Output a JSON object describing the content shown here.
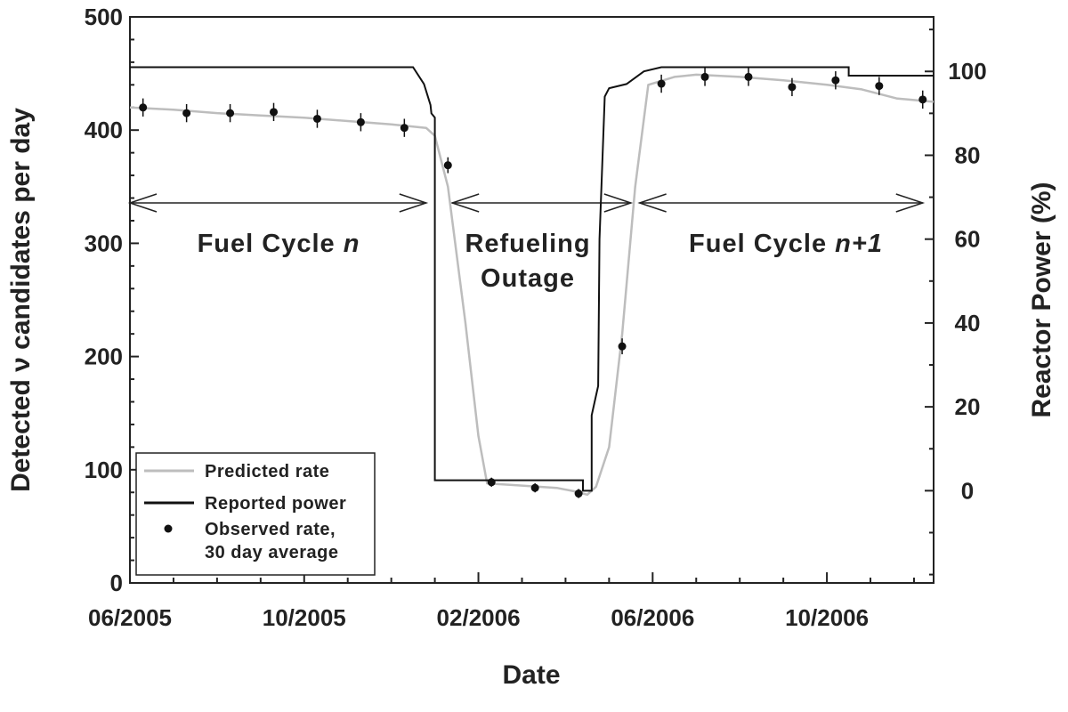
{
  "chart_data": {
    "type": "line",
    "title": "",
    "xlabel": "Date",
    "ylabel_left": "Detected ν candidates per day",
    "ylabel_right": "Reactor Power (%)",
    "x_tick_labels": [
      "06/2005",
      "10/2005",
      "02/2006",
      "06/2006",
      "10/2006"
    ],
    "x_tick_months": [
      0,
      4,
      8,
      12,
      16
    ],
    "xlim_months": [
      0,
      18.45
    ],
    "ylim_left": [
      0,
      500
    ],
    "yticks_left": [
      0,
      100,
      200,
      300,
      400,
      500
    ],
    "ylim_right": [
      -22,
      113
    ],
    "yticks_right": [
      0,
      20,
      40,
      60,
      80,
      100
    ],
    "regions": [
      {
        "label": "Fuel Cycle ",
        "label_italic": "n",
        "arrow_months": [
          0,
          6.8
        ]
      },
      {
        "label": "Refueling",
        "label2": "Outage",
        "arrow_months": [
          7.4,
          11.5
        ]
      },
      {
        "label": "Fuel Cycle ",
        "label_italic": "n+1",
        "arrow_months": [
          11.7,
          18.2
        ]
      }
    ],
    "legend": {
      "position": "lower-left",
      "entries": [
        {
          "label": "Predicted rate",
          "style": "gray-line"
        },
        {
          "label": "Reported power",
          "style": "black-line"
        },
        {
          "label": "Observed rate,",
          "label2": "30 day average",
          "style": "dot"
        }
      ]
    },
    "series": [
      {
        "name": "Predicted rate",
        "axis": "left",
        "color": "#bdbdbd",
        "x_months": [
          0,
          1,
          2,
          3,
          4,
          5,
          6,
          6.8,
          7.0,
          7.3,
          7.7,
          8.0,
          8.2,
          9.0,
          9.8,
          10.2,
          10.5,
          10.7,
          11.0,
          11.3,
          11.6,
          11.9,
          12.5,
          13,
          14,
          15,
          16,
          16.8,
          17.6,
          18.45
        ],
        "values": [
          420,
          418,
          415,
          413,
          411,
          408,
          405,
          402,
          395,
          350,
          230,
          130,
          88,
          86,
          84,
          81,
          78,
          85,
          120,
          220,
          350,
          440,
          447,
          449,
          447,
          444,
          440,
          436,
          428,
          425
        ]
      },
      {
        "name": "Reported power",
        "axis": "right",
        "color": "#111111",
        "x_months": [
          0,
          6.5,
          6.75,
          6.9,
          6.92,
          7.0,
          7.0,
          10.4,
          10.4,
          10.6,
          10.6,
          10.75,
          10.78,
          10.9,
          11.0,
          11.4,
          11.8,
          12.2,
          14.3,
          16.5,
          16.5,
          18.45
        ],
        "values": [
          101,
          101,
          97,
          92,
          90,
          89,
          2.5,
          2.5,
          0,
          0,
          18,
          25,
          60,
          94,
          96,
          97,
          100,
          101,
          101,
          101,
          99,
          99
        ]
      },
      {
        "name": "Observed rate, 30 day average",
        "axis": "left",
        "color": "#111111",
        "x_months": [
          0.3,
          1.3,
          2.3,
          3.3,
          4.3,
          5.3,
          6.3,
          7.3,
          8.3,
          9.3,
          10.3,
          11.3,
          12.2,
          13.2,
          14.2,
          15.2,
          16.2,
          17.2,
          18.2
        ],
        "values": [
          420,
          415,
          415,
          416,
          410,
          407,
          402,
          369,
          89,
          84,
          79,
          209,
          441,
          447,
          447,
          438,
          444,
          439,
          427
        ],
        "error": [
          8,
          8,
          8,
          8,
          8,
          8,
          8,
          7,
          4,
          4,
          4,
          7,
          8,
          8,
          8,
          8,
          8,
          8,
          8
        ]
      }
    ]
  }
}
